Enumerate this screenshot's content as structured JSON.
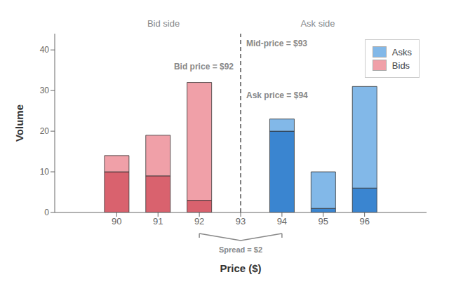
{
  "chart_data": {
    "type": "bar",
    "stacked": true,
    "x": [
      90,
      91,
      92,
      93,
      94,
      95,
      96
    ],
    "xlim": [
      88.5,
      97.5
    ],
    "xticks": [
      90,
      91,
      92,
      93,
      94,
      95,
      96
    ],
    "ylim": [
      0,
      44
    ],
    "yticks": [
      0,
      10,
      20,
      30,
      40
    ],
    "xlabel": "Price ($)",
    "ylabel": "Volume",
    "grid": false,
    "legend": "upper right",
    "series": [
      {
        "color": "#3a85d0",
        "values": [
          null,
          null,
          null,
          null,
          20,
          1,
          6
        ]
      },
      {
        "name": "Asks",
        "color": "#82b8e8",
        "values": [
          null,
          null,
          null,
          null,
          3,
          9,
          25
        ]
      },
      {
        "color": "#d9626e",
        "values": [
          10,
          9,
          3,
          null,
          null,
          null,
          null
        ]
      },
      {
        "name": "Bids",
        "color": "#f0a0a8",
        "values": [
          4,
          10,
          29,
          null,
          null,
          null,
          null
        ]
      }
    ],
    "mid_price": 93,
    "bid_price": 92,
    "ask_price": 94,
    "annotations": [
      "Bid side",
      "Ask side",
      "Mid-price = $93",
      "Bid price = $92",
      "Ask price = $94",
      "Spread = $2"
    ]
  }
}
